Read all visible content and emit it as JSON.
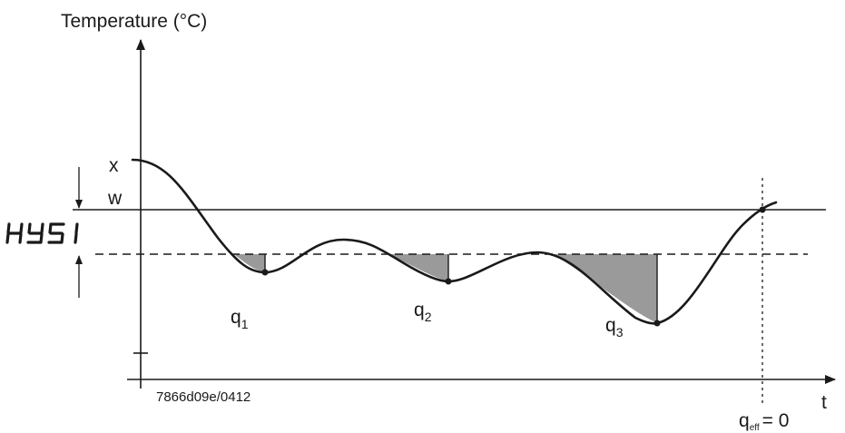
{
  "axes": {
    "y_label": "Temperature (°C)",
    "x_label": "t"
  },
  "levels": {
    "x": "x",
    "w": "w"
  },
  "hysteresis": {
    "label": "HYS1",
    "display_chars": [
      "H",
      "Y",
      "5",
      "1"
    ]
  },
  "areas": [
    {
      "name": "q",
      "sub": "1"
    },
    {
      "name": "q",
      "sub": "2"
    },
    {
      "name": "q",
      "sub": "3"
    }
  ],
  "crossing": {
    "name": "q",
    "sub": "eff",
    "value": "= 0"
  },
  "code": "7866d09e/0412",
  "colors": {
    "line": "#1a1a1a",
    "shade": "#9a9a9a"
  }
}
